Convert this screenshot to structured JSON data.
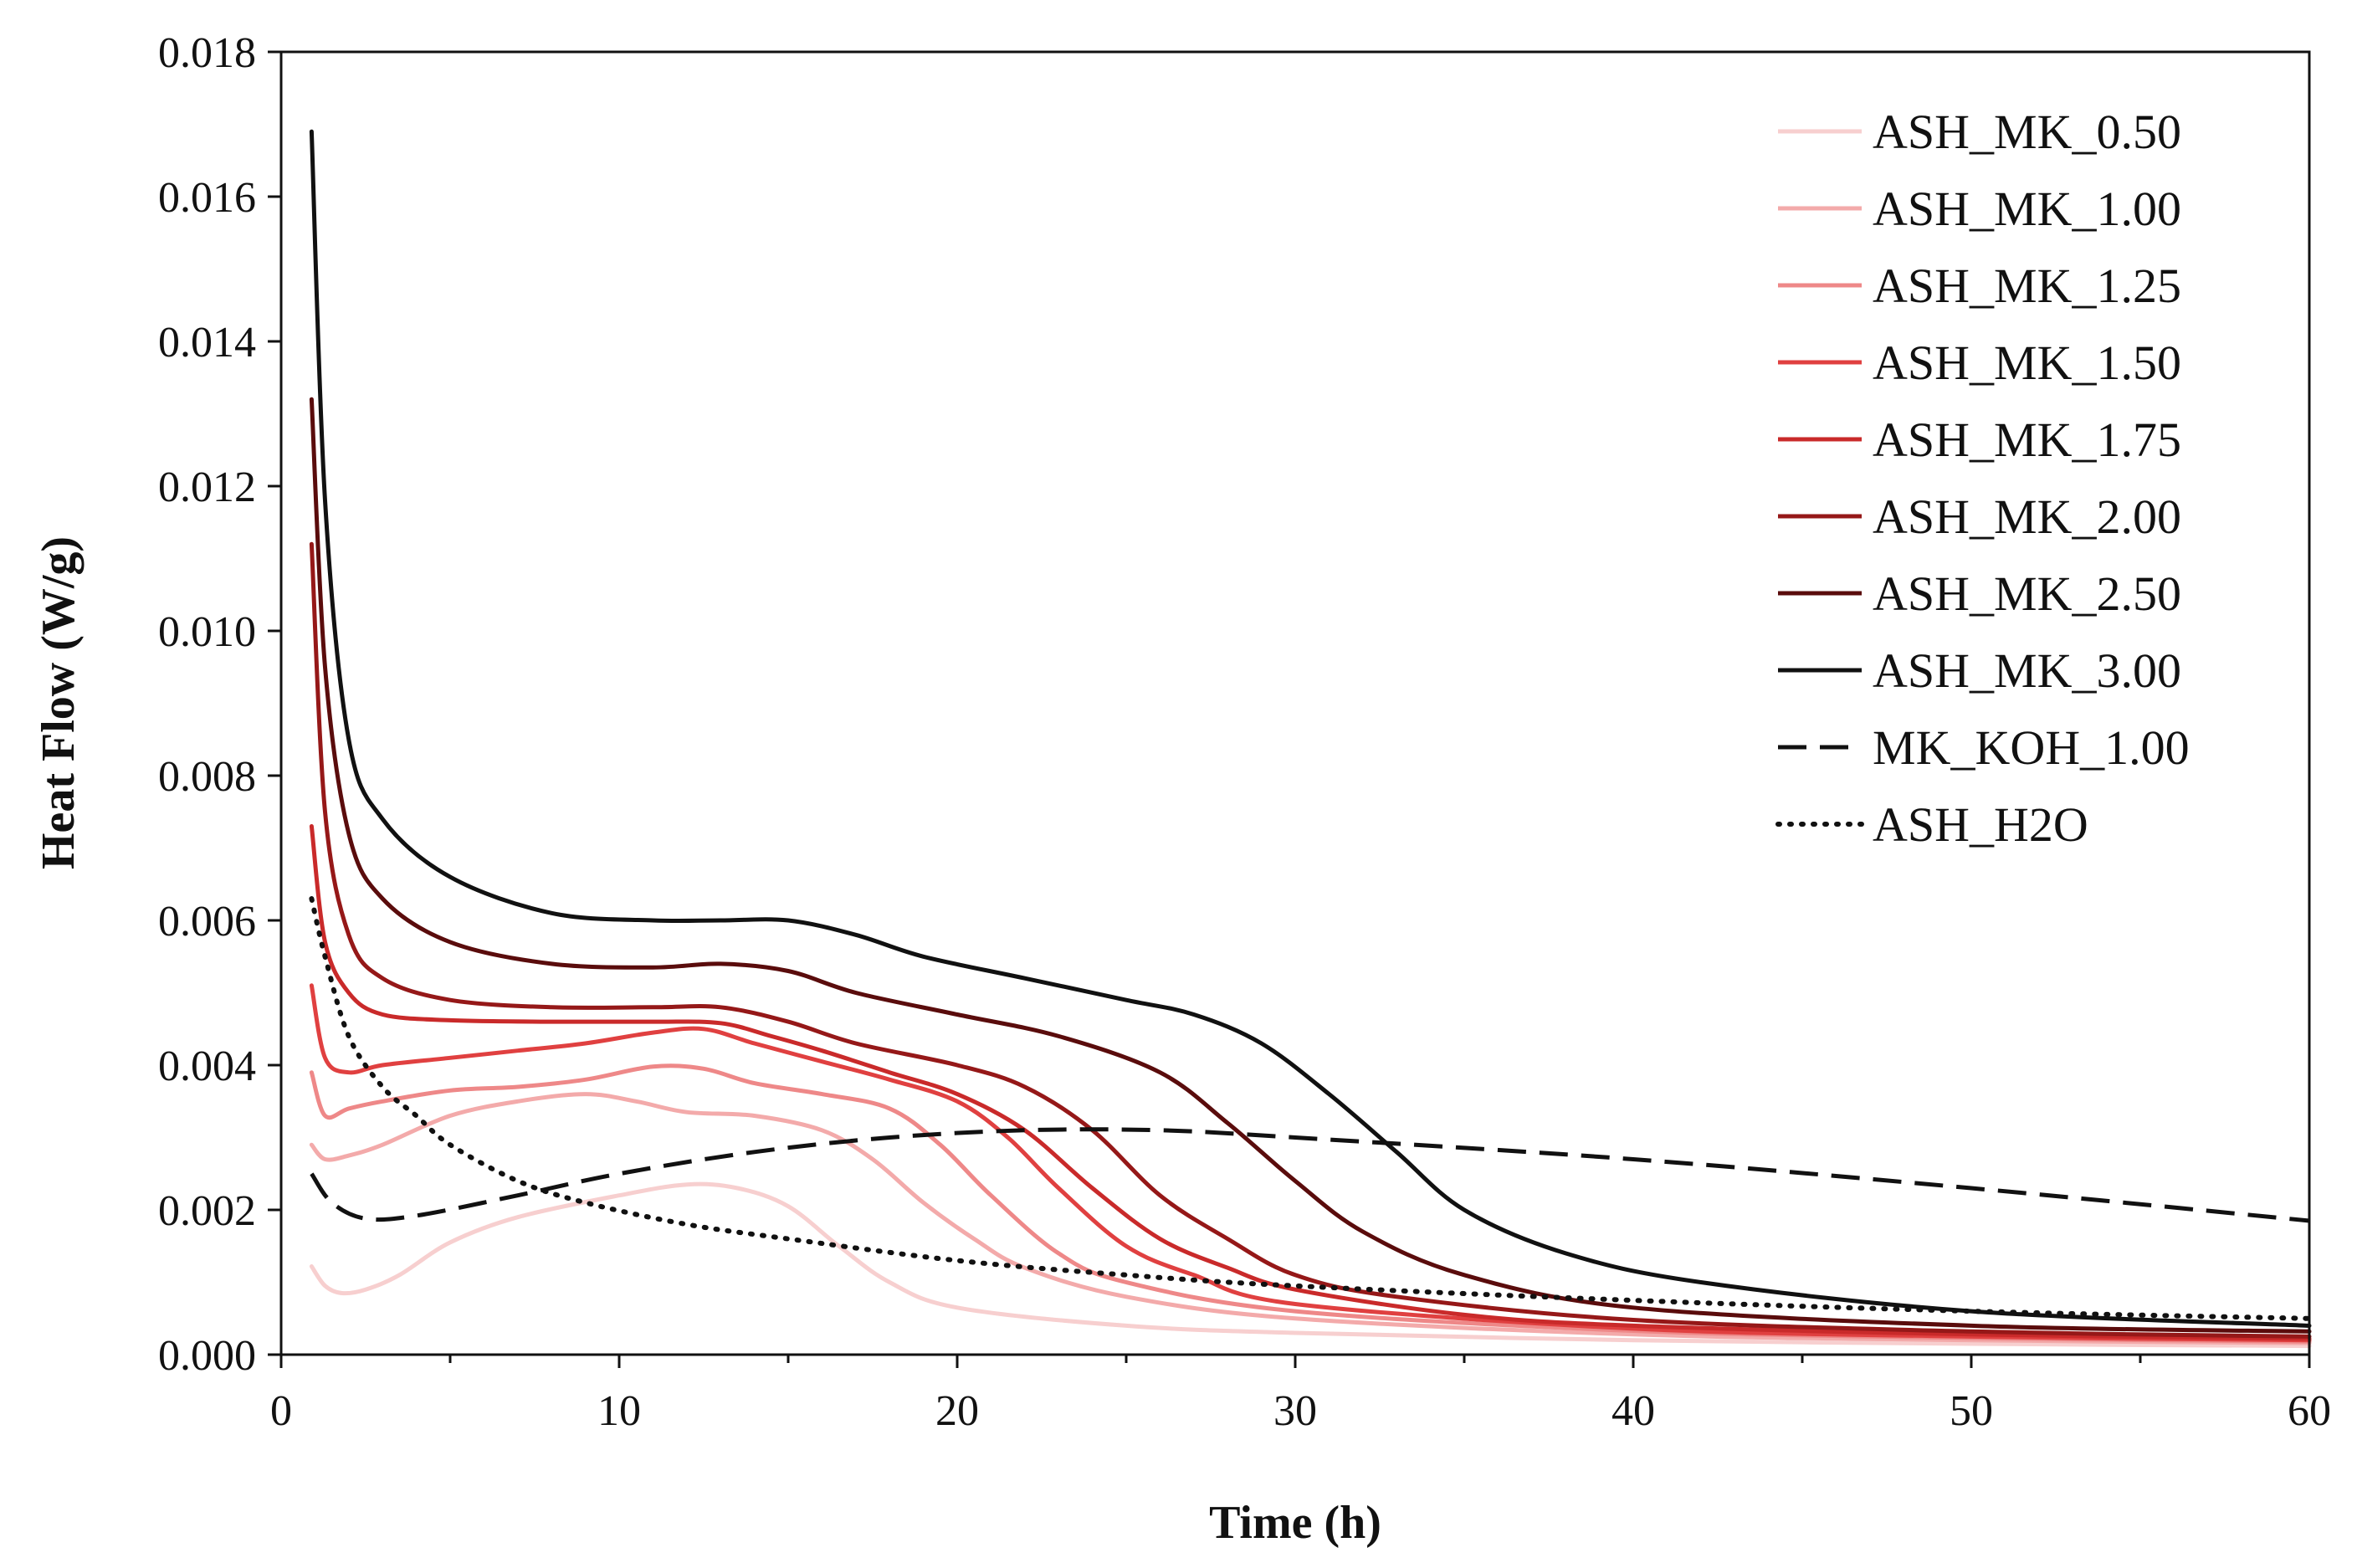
{
  "chart_data": {
    "type": "line",
    "title": "",
    "xlabel": "Time (h)",
    "ylabel": "Heat Flow (W/g)",
    "xlim": [
      0,
      60
    ],
    "ylim": [
      0,
      0.018
    ],
    "xticks": [
      0,
      10,
      20,
      30,
      40,
      50,
      60
    ],
    "xtick_labels": [
      "0",
      "10",
      "20",
      "30",
      "40",
      "50",
      "60"
    ],
    "yticks": [
      0,
      0.002,
      0.004,
      0.006,
      0.008,
      0.01,
      0.012,
      0.014,
      0.016,
      0.018
    ],
    "ytick_labels": [
      "0.000",
      "0.002",
      "0.004",
      "0.006",
      "0.008",
      "0.010",
      "0.012",
      "0.014",
      "0.016",
      "0.018"
    ],
    "grid": false,
    "legend_position": "top-right",
    "series": [
      {
        "name": "ASH_MK_0.50",
        "color": "#f7cfcf",
        "dash": "solid",
        "points": [
          [
            0.9,
            0.00122
          ],
          [
            1.3,
            0.00095
          ],
          [
            1.8,
            0.00085
          ],
          [
            2.5,
            0.0009
          ],
          [
            3.5,
            0.0011
          ],
          [
            5,
            0.00155
          ],
          [
            7,
            0.0019
          ],
          [
            10,
            0.0022
          ],
          [
            12,
            0.00235
          ],
          [
            13.5,
            0.0023
          ],
          [
            15,
            0.00205
          ],
          [
            16.5,
            0.0015
          ],
          [
            18,
            0.001
          ],
          [
            20,
            0.00065
          ],
          [
            25,
            0.0004
          ],
          [
            30,
            0.0003
          ],
          [
            40,
            0.0002
          ],
          [
            50,
            0.00015
          ],
          [
            60,
            0.00012
          ]
        ]
      },
      {
        "name": "ASH_MK_1.00",
        "color": "#f3aaaa",
        "dash": "solid",
        "points": [
          [
            0.9,
            0.0029
          ],
          [
            1.3,
            0.0027
          ],
          [
            2,
            0.00275
          ],
          [
            3,
            0.0029
          ],
          [
            5,
            0.0033
          ],
          [
            7,
            0.0035
          ],
          [
            9,
            0.0036
          ],
          [
            10.5,
            0.0035
          ],
          [
            12,
            0.00335
          ],
          [
            14,
            0.0033
          ],
          [
            16,
            0.0031
          ],
          [
            17.5,
            0.0027
          ],
          [
            19,
            0.0021
          ],
          [
            20.5,
            0.0016
          ],
          [
            22,
            0.0012
          ],
          [
            25,
            0.0008
          ],
          [
            30,
            0.0005
          ],
          [
            40,
            0.00028
          ],
          [
            50,
            0.0002
          ],
          [
            60,
            0.00016
          ]
        ]
      },
      {
        "name": "ASH_MK_1.25",
        "color": "#ee8888",
        "dash": "solid",
        "points": [
          [
            0.9,
            0.0039
          ],
          [
            1.3,
            0.0033
          ],
          [
            2,
            0.0034
          ],
          [
            3,
            0.0035
          ],
          [
            5,
            0.00365
          ],
          [
            7,
            0.0037
          ],
          [
            9,
            0.0038
          ],
          [
            11,
            0.00398
          ],
          [
            12.5,
            0.00395
          ],
          [
            14,
            0.00375
          ],
          [
            16,
            0.0036
          ],
          [
            18,
            0.0034
          ],
          [
            19.5,
            0.0029
          ],
          [
            21,
            0.0022
          ],
          [
            23,
            0.0014
          ],
          [
            25,
            0.001
          ],
          [
            30,
            0.0006
          ],
          [
            40,
            0.00033
          ],
          [
            50,
            0.00023
          ],
          [
            60,
            0.00018
          ]
        ]
      },
      {
        "name": "ASH_MK_1.50",
        "color": "#e04040",
        "dash": "solid",
        "points": [
          [
            0.9,
            0.0051
          ],
          [
            1.3,
            0.0041
          ],
          [
            2,
            0.0039
          ],
          [
            3,
            0.004
          ],
          [
            5,
            0.0041
          ],
          [
            7,
            0.0042
          ],
          [
            9,
            0.0043
          ],
          [
            11,
            0.00445
          ],
          [
            12.5,
            0.0045
          ],
          [
            14,
            0.0043
          ],
          [
            16,
            0.00405
          ],
          [
            18,
            0.0038
          ],
          [
            20,
            0.0035
          ],
          [
            21.5,
            0.003
          ],
          [
            23,
            0.0023
          ],
          [
            25,
            0.0015
          ],
          [
            27,
            0.0011
          ],
          [
            30,
            0.0007
          ],
          [
            40,
            0.00036
          ],
          [
            50,
            0.00025
          ],
          [
            60,
            0.0002
          ]
        ]
      },
      {
        "name": "ASH_MK_1.75",
        "color": "#c92a2a",
        "dash": "solid",
        "points": [
          [
            0.9,
            0.0073
          ],
          [
            1.3,
            0.0057
          ],
          [
            2,
            0.005
          ],
          [
            3,
            0.0047
          ],
          [
            5,
            0.00462
          ],
          [
            8,
            0.0046
          ],
          [
            11,
            0.0046
          ],
          [
            13,
            0.00458
          ],
          [
            14.5,
            0.0044
          ],
          [
            16,
            0.0042
          ],
          [
            18,
            0.0039
          ],
          [
            20,
            0.0036
          ],
          [
            22,
            0.0031
          ],
          [
            24,
            0.0023
          ],
          [
            26,
            0.0016
          ],
          [
            28,
            0.0012
          ],
          [
            30,
            0.0009
          ],
          [
            35,
            0.00055
          ],
          [
            40,
            0.0004
          ],
          [
            50,
            0.00028
          ],
          [
            60,
            0.00022
          ]
        ]
      },
      {
        "name": "ASH_MK_2.00",
        "color": "#951818",
        "dash": "solid",
        "points": [
          [
            0.9,
            0.0112
          ],
          [
            1.3,
            0.0075
          ],
          [
            2,
            0.0058
          ],
          [
            3,
            0.0052
          ],
          [
            5,
            0.0049
          ],
          [
            8,
            0.0048
          ],
          [
            11,
            0.0048
          ],
          [
            13,
            0.0048
          ],
          [
            15,
            0.0046
          ],
          [
            17,
            0.0043
          ],
          [
            20,
            0.004
          ],
          [
            22,
            0.0037
          ],
          [
            24,
            0.0031
          ],
          [
            26,
            0.0022
          ],
          [
            28,
            0.0016
          ],
          [
            30,
            0.0011
          ],
          [
            33,
            0.0008
          ],
          [
            40,
            0.00048
          ],
          [
            50,
            0.00032
          ],
          [
            60,
            0.00025
          ]
        ]
      },
      {
        "name": "ASH_MK_2.50",
        "color": "#5a0c0c",
        "dash": "solid",
        "points": [
          [
            0.9,
            0.0132
          ],
          [
            1.3,
            0.0095
          ],
          [
            2,
            0.0072
          ],
          [
            3,
            0.0063
          ],
          [
            5,
            0.0057
          ],
          [
            8,
            0.0054
          ],
          [
            11,
            0.00535
          ],
          [
            13,
            0.0054
          ],
          [
            15,
            0.0053
          ],
          [
            17,
            0.005
          ],
          [
            20,
            0.0047
          ],
          [
            23,
            0.0044
          ],
          [
            26,
            0.0039
          ],
          [
            28,
            0.0032
          ],
          [
            30,
            0.0024
          ],
          [
            32,
            0.0017
          ],
          [
            35,
            0.0011
          ],
          [
            40,
            0.00065
          ],
          [
            50,
            0.0004
          ],
          [
            60,
            0.00032
          ]
        ]
      },
      {
        "name": "ASH_MK_3.00",
        "color": "#111111",
        "dash": "solid",
        "points": [
          [
            0.9,
            0.0169
          ],
          [
            1.3,
            0.0118
          ],
          [
            2,
            0.0085
          ],
          [
            3,
            0.0074
          ],
          [
            5,
            0.0066
          ],
          [
            8,
            0.0061
          ],
          [
            11,
            0.006
          ],
          [
            13,
            0.006
          ],
          [
            15,
            0.006
          ],
          [
            17,
            0.0058
          ],
          [
            19,
            0.0055
          ],
          [
            22,
            0.0052
          ],
          [
            25,
            0.0049
          ],
          [
            27,
            0.0047
          ],
          [
            29,
            0.0043
          ],
          [
            31,
            0.0036
          ],
          [
            33,
            0.0028
          ],
          [
            35,
            0.002
          ],
          [
            38,
            0.0014
          ],
          [
            42,
            0.001
          ],
          [
            50,
            0.0006
          ],
          [
            60,
            0.0004
          ]
        ]
      },
      {
        "name": "MK_KOH_1.00",
        "color": "#111111",
        "dash": "dashed",
        "points": [
          [
            0.9,
            0.0025
          ],
          [
            1.5,
            0.0021
          ],
          [
            2.5,
            0.00188
          ],
          [
            4,
            0.00192
          ],
          [
            7,
            0.0022
          ],
          [
            10,
            0.0025
          ],
          [
            14,
            0.0028
          ],
          [
            18,
            0.003
          ],
          [
            22,
            0.0031
          ],
          [
            26,
            0.0031
          ],
          [
            30,
            0.003
          ],
          [
            40,
            0.0027
          ],
          [
            50,
            0.0023
          ],
          [
            60,
            0.00185
          ]
        ]
      },
      {
        "name": "ASH_H2O",
        "color": "#111111",
        "dash": "dotted",
        "points": [
          [
            0.9,
            0.0063
          ],
          [
            1.3,
            0.0055
          ],
          [
            2,
            0.0044
          ],
          [
            3,
            0.0037
          ],
          [
            4,
            0.0033
          ],
          [
            5,
            0.0029
          ],
          [
            7,
            0.0024
          ],
          [
            9,
            0.0021
          ],
          [
            12,
            0.0018
          ],
          [
            15,
            0.0016
          ],
          [
            20,
            0.0013
          ],
          [
            25,
            0.0011
          ],
          [
            30,
            0.00095
          ],
          [
            40,
            0.00075
          ],
          [
            50,
            0.0006
          ],
          [
            60,
            0.0005
          ]
        ]
      }
    ]
  }
}
